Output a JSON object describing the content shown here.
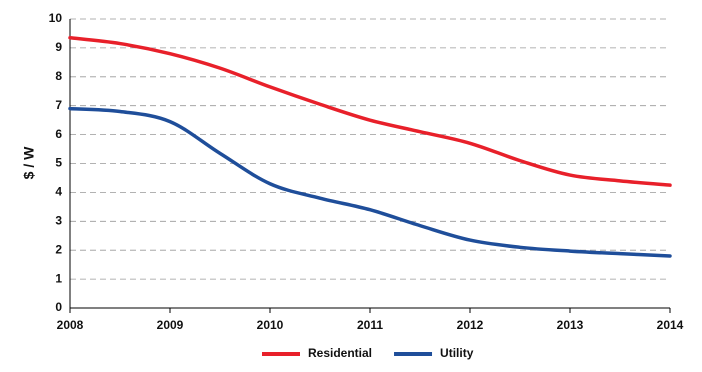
{
  "chart_data": {
    "type": "line",
    "y_label": "$ / W",
    "x": [
      2008,
      2008.5,
      2009,
      2009.5,
      2010,
      2010.5,
      2011,
      2011.5,
      2012,
      2012.5,
      2013,
      2013.5,
      2014
    ],
    "series": [
      {
        "name": "Residential",
        "color": "#e8202a",
        "values": [
          9.35,
          9.15,
          8.8,
          8.3,
          7.65,
          7.05,
          6.5,
          6.1,
          5.7,
          5.1,
          4.6,
          4.4,
          4.25
        ]
      },
      {
        "name": "Utility",
        "color": "#1f4e9a",
        "values": [
          6.9,
          6.8,
          6.45,
          5.35,
          4.3,
          3.8,
          3.4,
          2.85,
          2.35,
          2.1,
          1.97,
          1.88,
          1.8
        ]
      }
    ],
    "xlim": [
      2008,
      2014
    ],
    "xticks": [
      2008,
      2009,
      2010,
      2011,
      2012,
      2013,
      2014
    ],
    "ylim": [
      0,
      10
    ],
    "yticks": [
      0,
      1,
      2,
      3,
      4,
      5,
      6,
      7,
      8,
      9,
      10
    ],
    "grid": true,
    "legend": "bottom"
  }
}
